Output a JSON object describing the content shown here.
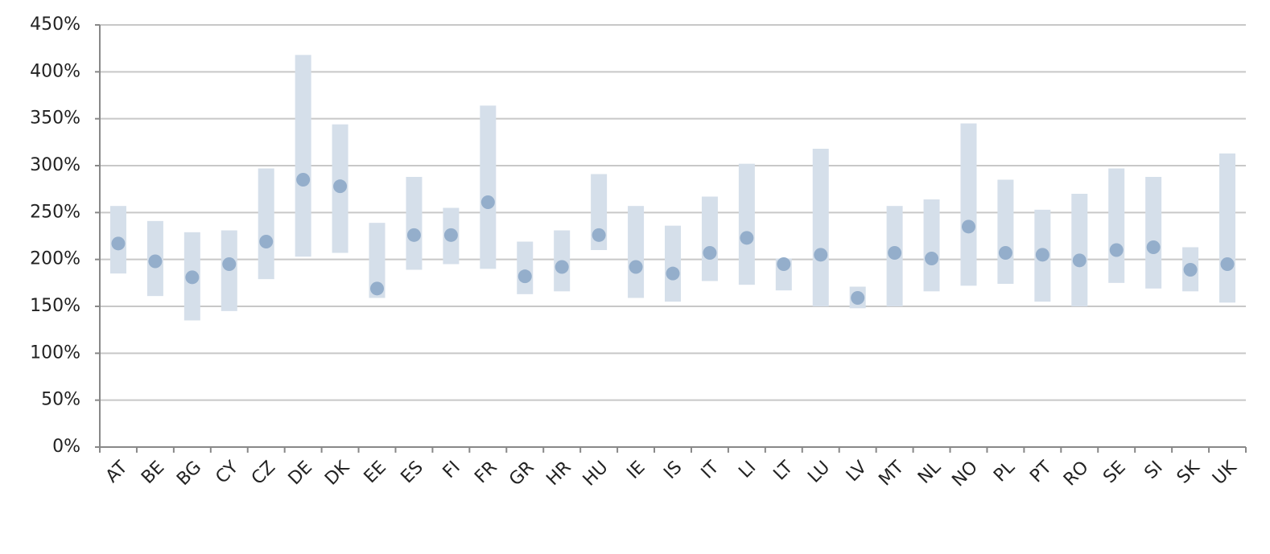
{
  "chart_data": {
    "type": "range",
    "categories": [
      "AT",
      "BE",
      "BG",
      "CY",
      "CZ",
      "DE",
      "DK",
      "EE",
      "ES",
      "FI",
      "FR",
      "GR",
      "HR",
      "HU",
      "IE",
      "IS",
      "IT",
      "LI",
      "LT",
      "LU",
      "LV",
      "MT",
      "NL",
      "NO",
      "PL",
      "PT",
      "RO",
      "SE",
      "SI",
      "SK",
      "UK"
    ],
    "low": [
      185,
      161,
      135,
      145,
      179,
      203,
      207,
      159,
      189,
      195,
      190,
      163,
      166,
      210,
      159,
      155,
      177,
      173,
      167,
      150,
      148,
      150,
      166,
      172,
      174,
      155,
      150,
      175,
      169,
      166,
      154
    ],
    "high": [
      257,
      241,
      229,
      231,
      297,
      418,
      344,
      239,
      288,
      255,
      364,
      219,
      231,
      291,
      257,
      236,
      267,
      302,
      201,
      318,
      171,
      257,
      264,
      345,
      285,
      253,
      270,
      297,
      288,
      213,
      313
    ],
    "values": [
      217,
      198,
      181,
      195,
      219,
      285,
      278,
      169,
      226,
      226,
      261,
      182,
      192,
      226,
      192,
      185,
      207,
      223,
      195,
      205,
      159,
      207,
      201,
      235,
      207,
      205,
      199,
      210,
      213,
      189,
      195
    ],
    "range_color": "#d5dfea",
    "color": "#94aecb",
    "ylim": [
      0,
      450
    ],
    "yticks": [
      {
        "value": 0,
        "label": "0%"
      },
      {
        "value": 50,
        "label": "50%"
      },
      {
        "value": 100,
        "label": "100%"
      },
      {
        "value": 150,
        "label": "150%"
      },
      {
        "value": 200,
        "label": "200%"
      },
      {
        "value": 250,
        "label": "250%"
      },
      {
        "value": 300,
        "label": "300%"
      },
      {
        "value": 350,
        "label": "350%"
      },
      {
        "value": 400,
        "label": "400%"
      },
      {
        "value": 450,
        "label": "450%"
      }
    ],
    "grid": true
  }
}
